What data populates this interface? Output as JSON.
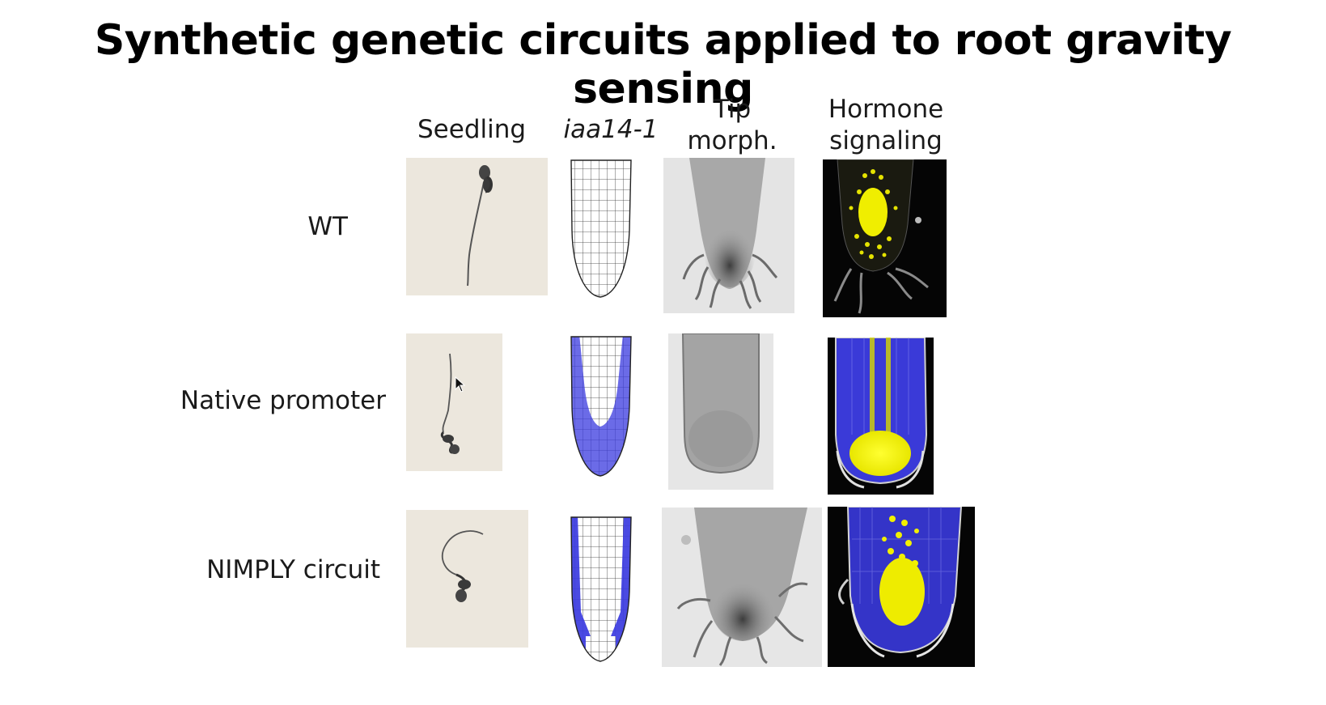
{
  "slide": {
    "title": "Synthetic genetic circuits applied to root gravity sensing"
  },
  "columns": {
    "seedling": "Seedling",
    "iaa14": "iaa14-1",
    "tip_line1": "Tip",
    "tip_line2": "morph.",
    "hormone_line1": "Hormone",
    "hormone_line2": "signaling"
  },
  "rows": {
    "wt": "WT",
    "native": "Native promoter",
    "nimply": "NIMPLY circuit"
  },
  "colors": {
    "expression_blue": "#3a3ae0",
    "reporter_yellow": "#f2f000",
    "seedling_bg": "#ede8df",
    "micrograph_bg": "#d9d9d9"
  }
}
